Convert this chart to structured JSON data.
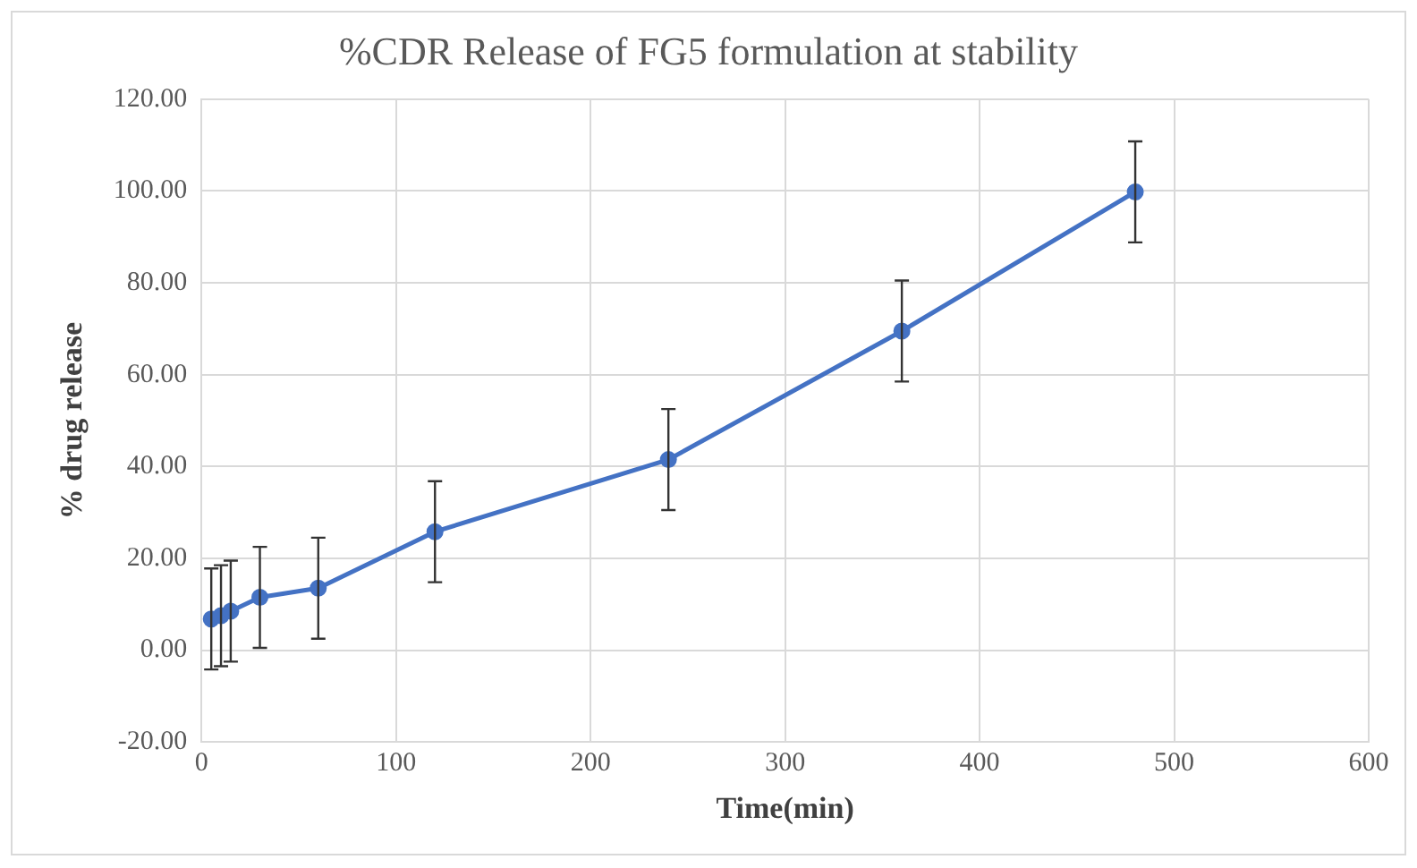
{
  "chart_data": {
    "type": "line",
    "title": "%CDR Release of FG5 formulation at stability",
    "xlabel": "Time(min)",
    "ylabel": "% drug release",
    "x": [
      5,
      10,
      15,
      30,
      60,
      120,
      240,
      360,
      480
    ],
    "series": [
      {
        "color": "#4472c4",
        "values": [
          6.8,
          7.5,
          8.5,
          11.5,
          13.5,
          25.8,
          41.5,
          69.5,
          99.8
        ],
        "errors": [
          11,
          11,
          11,
          11,
          11,
          11,
          11,
          11,
          11
        ]
      }
    ],
    "xlim": [
      0,
      600
    ],
    "xticks": [
      0,
      100,
      200,
      300,
      400,
      500,
      600
    ],
    "ylim": [
      -20,
      120
    ],
    "yticks": [
      {
        "value": -20,
        "label": "-20.00"
      },
      {
        "value": 0,
        "label": "0.00"
      },
      {
        "value": 20,
        "label": "20.00"
      },
      {
        "value": 40,
        "label": "40.00"
      },
      {
        "value": 60,
        "label": "60.00"
      },
      {
        "value": 80,
        "label": "80.00"
      },
      {
        "value": 100,
        "label": "100.00"
      },
      {
        "value": 120,
        "label": "120.00"
      }
    ],
    "grid": true,
    "legend": false,
    "marker": "circle",
    "line_style": "solid"
  }
}
